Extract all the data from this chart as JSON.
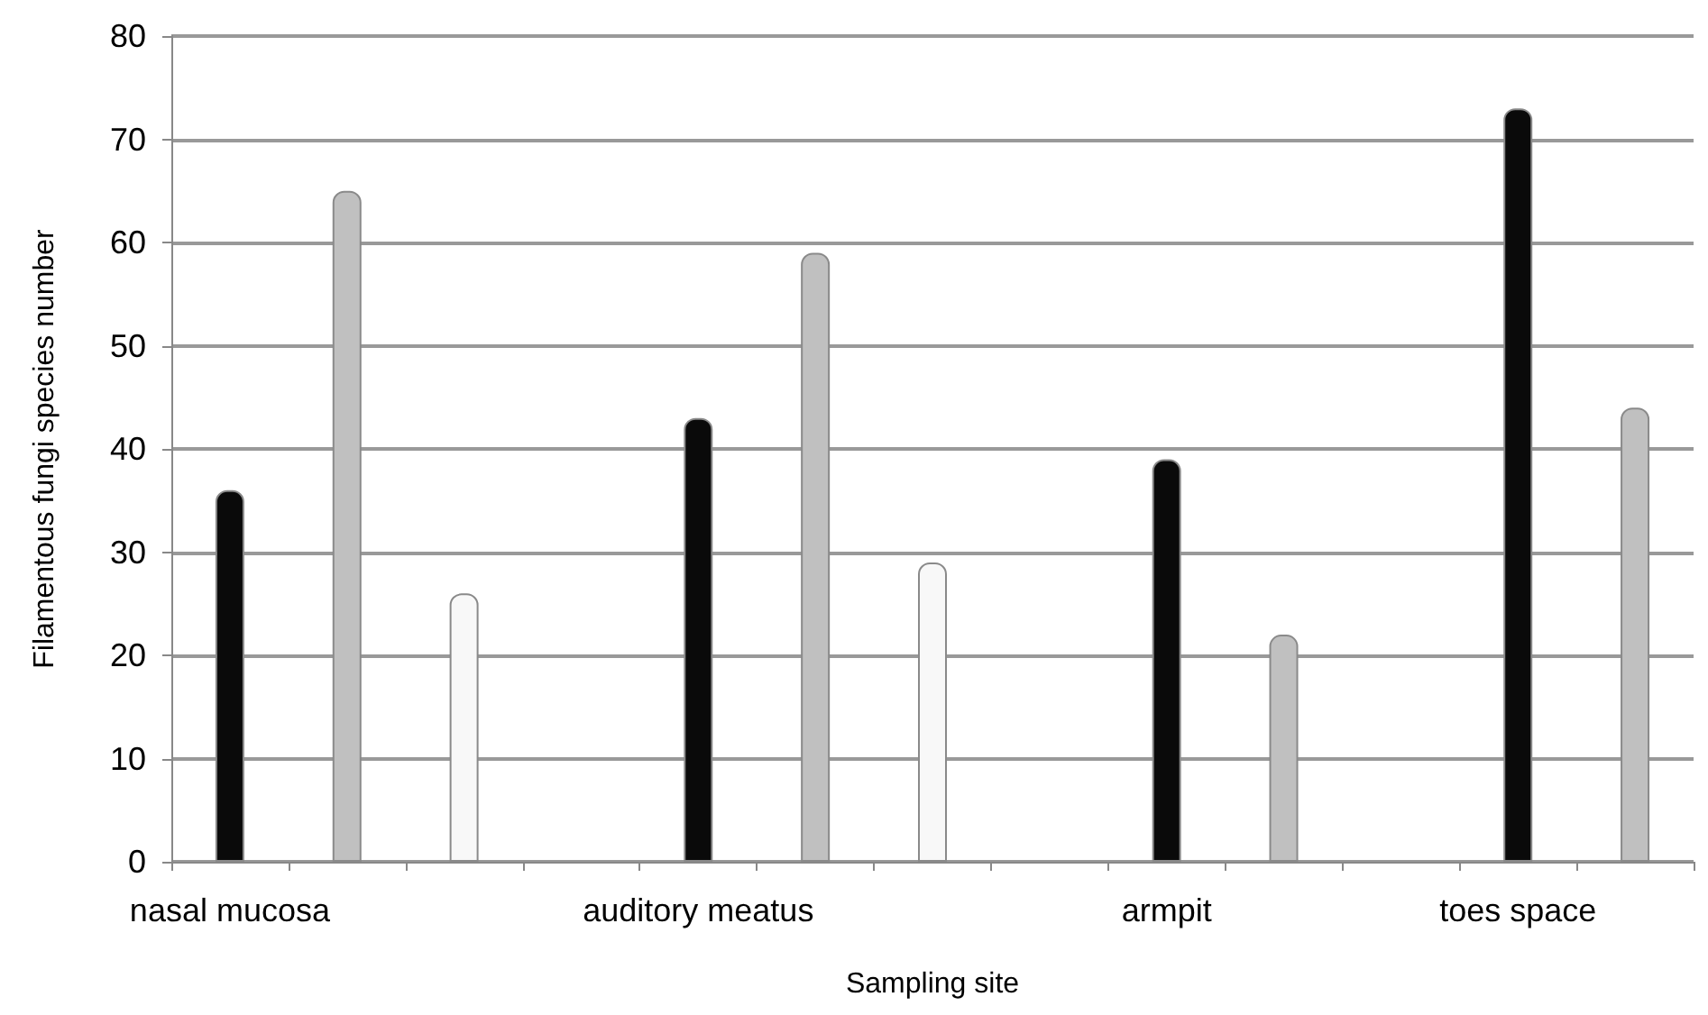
{
  "chart_data": {
    "type": "bar",
    "xlabel": "Sampling site",
    "ylabel": "Filamentous fungi species number",
    "categories": [
      "nasal mucosa",
      null,
      null,
      null,
      "auditory meatus",
      null,
      null,
      null,
      "armpit",
      null,
      null,
      "toes space",
      null
    ],
    "values": [
      36,
      65,
      26,
      null,
      43,
      59,
      29,
      null,
      39,
      22,
      null,
      73,
      44
    ],
    "colors": [
      "#0a0a0a",
      "#c0c0c0",
      "#f8f8f8",
      null,
      "#0a0a0a",
      "#c0c0c0",
      "#f8f8f8",
      null,
      "#0a0a0a",
      "#c0c0c0",
      null,
      "#0a0a0a",
      "#c0c0c0"
    ],
    "ylim": [
      0,
      80
    ],
    "yticks": [
      0,
      10,
      20,
      30,
      40,
      50,
      60,
      70,
      80
    ],
    "grid": true
  }
}
